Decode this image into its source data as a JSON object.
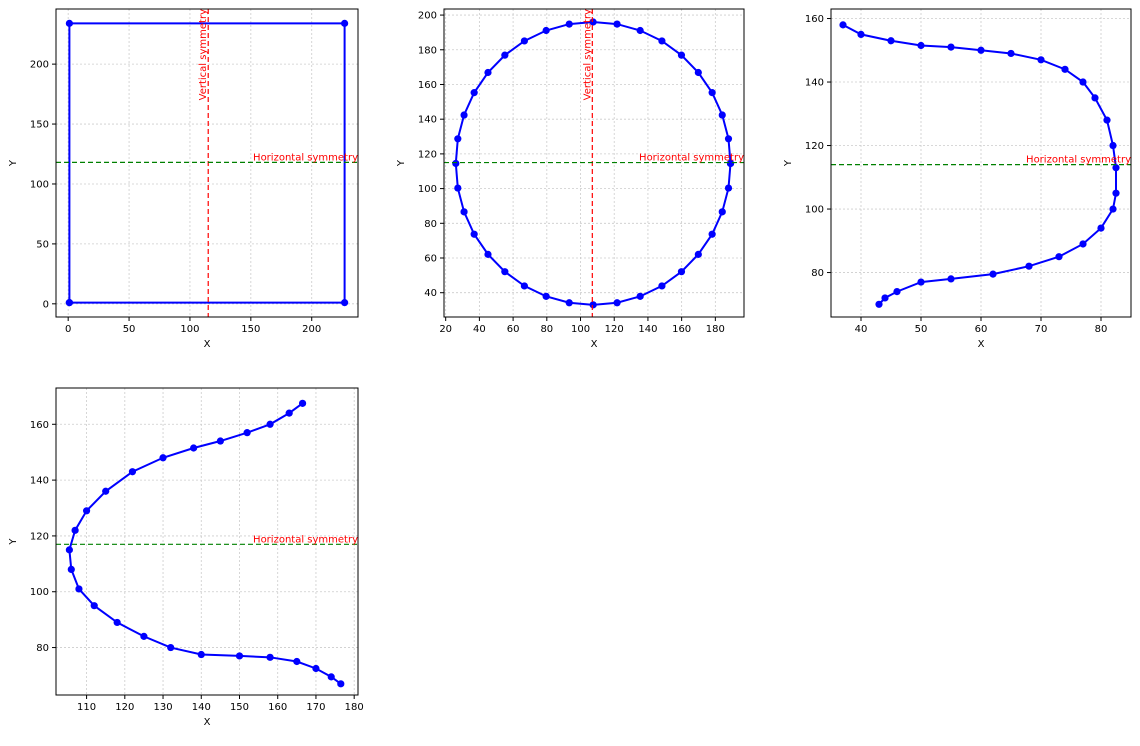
{
  "chart_data": [
    {
      "type": "line",
      "marker": "o",
      "color": "#0000ff",
      "xlabel": "X",
      "ylabel": "Y",
      "grid": true,
      "x": [
        1,
        1,
        227,
        227,
        1
      ],
      "values": [
        1,
        234,
        234,
        1,
        1
      ],
      "xlim": [
        -10,
        238
      ],
      "ylim": [
        -11,
        246
      ],
      "xticks": [
        0,
        50,
        100,
        150,
        200
      ],
      "yticks": [
        0,
        50,
        100,
        150,
        200
      ],
      "lines": [
        {
          "orientation": "vertical",
          "value": 115,
          "color": "#ff0000",
          "label": "Vertical symmetry"
        },
        {
          "orientation": "horizontal",
          "value": 118,
          "color": "#008000",
          "label": "Horizontal symmetry"
        }
      ]
    },
    {
      "type": "line",
      "marker": "o",
      "color": "#0000ff",
      "xlabel": "X",
      "ylabel": "Y",
      "grid": true,
      "x": [
        189,
        187.8,
        184.1,
        178.1,
        169.9,
        159.9,
        148.3,
        135.4,
        121.7,
        107.5,
        93.3,
        79.6,
        66.7,
        55.1,
        45.1,
        36.9,
        30.9,
        27.2,
        26,
        27.2,
        30.9,
        36.9,
        45.1,
        55.1,
        66.7,
        79.6,
        93.3,
        107.5,
        121.7,
        135.4,
        148.3,
        159.9,
        169.9,
        178.1,
        184.1,
        187.8,
        189
      ],
      "values": [
        114.5,
        128.7,
        142.4,
        155.3,
        166.9,
        176.9,
        185.1,
        191.1,
        194.8,
        196,
        194.8,
        191.1,
        185.1,
        176.9,
        166.9,
        155.3,
        142.4,
        128.7,
        114.5,
        100.3,
        86.6,
        73.7,
        62.1,
        52.1,
        43.9,
        37.9,
        34.2,
        33,
        34.2,
        37.9,
        43.9,
        52.1,
        62.1,
        73.7,
        86.6,
        100.3,
        114.5
      ],
      "xlim": [
        19,
        197
      ],
      "ylim": [
        26,
        203.5
      ],
      "xticks": [
        20,
        40,
        60,
        80,
        100,
        120,
        140,
        160,
        180
      ],
      "yticks": [
        40,
        60,
        80,
        100,
        120,
        140,
        160,
        180,
        200
      ],
      "lines": [
        {
          "orientation": "vertical",
          "value": 107,
          "color": "#ff0000",
          "label": "Vertical symmetry"
        },
        {
          "orientation": "horizontal",
          "value": 115,
          "color": "#008000",
          "label": "Horizontal symmetry"
        }
      ]
    },
    {
      "type": "line",
      "marker": "o",
      "color": "#0000ff",
      "xlabel": "X",
      "ylabel": "Y",
      "grid": true,
      "x": [
        37,
        40,
        45,
        50,
        55,
        60,
        65,
        70,
        74,
        77,
        79,
        81,
        82,
        82.5,
        82.5,
        82,
        80,
        77,
        73,
        68,
        62,
        55,
        50,
        46,
        44,
        43
      ],
      "values": [
        158,
        155,
        153,
        151.5,
        151,
        150,
        149,
        147,
        144,
        140,
        135,
        128,
        120,
        113,
        105,
        100,
        94,
        89,
        85,
        82,
        79.5,
        78,
        77,
        74,
        72,
        70
      ],
      "xlim": [
        35,
        85
      ],
      "ylim": [
        66,
        163
      ],
      "xticks": [
        40,
        50,
        60,
        70,
        80
      ],
      "yticks": [
        80,
        100,
        120,
        140,
        160
      ],
      "lines": [
        {
          "orientation": "horizontal",
          "value": 114,
          "color": "#008000",
          "label": "Horizontal symmetry"
        }
      ]
    },
    {
      "type": "line",
      "marker": "o",
      "color": "#0000ff",
      "xlabel": "X",
      "ylabel": "Y",
      "grid": true,
      "x": [
        166.5,
        163,
        158,
        152,
        145,
        138,
        130,
        122,
        115,
        110,
        107,
        105.5,
        106,
        108,
        112,
        118,
        125,
        132,
        140,
        150,
        158,
        165,
        170,
        174,
        176.5
      ],
      "values": [
        167.5,
        164,
        160,
        157,
        154,
        151.5,
        148,
        143,
        136,
        129,
        122,
        115,
        108,
        101,
        95,
        89,
        84,
        80,
        77.5,
        77,
        76.5,
        75,
        72.5,
        69.5,
        67
      ],
      "xlim": [
        102,
        181
      ],
      "ylim": [
        63,
        173
      ],
      "xticks": [
        110,
        120,
        130,
        140,
        150,
        160,
        170,
        180
      ],
      "yticks": [
        80,
        100,
        120,
        140,
        160
      ],
      "lines": [
        {
          "orientation": "horizontal",
          "value": 117,
          "color": "#008000",
          "label": "Horizontal symmetry"
        }
      ]
    }
  ]
}
